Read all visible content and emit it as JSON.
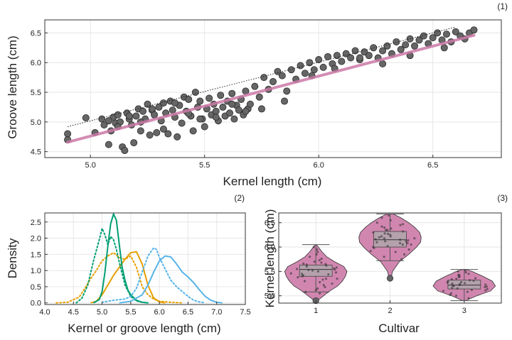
{
  "panels": [
    "(1)",
    "(2)",
    "(3)"
  ],
  "chart_data": [
    {
      "type": "scatter",
      "title": "",
      "panel_label": "(1)",
      "xlabel": "Kernel length (cm)",
      "ylabel": "Groove length (cm)",
      "xlim": [
        4.8,
        6.8
      ],
      "ylim": [
        4.4,
        6.72
      ],
      "xticks": [
        5.0,
        5.5,
        6.0,
        6.5
      ],
      "yticks": [
        4.5,
        5.0,
        5.5,
        6.0,
        6.5
      ],
      "xtick_labels": [
        "5.0",
        "5.5",
        "6.0",
        "6.5"
      ],
      "ytick_labels": [
        "4.5",
        "5.0",
        "5.5",
        "6.0",
        "6.5"
      ],
      "grid": true,
      "series": [
        {
          "kind": "points",
          "color": "#555555",
          "x": [
            4.9,
            4.9,
            4.98,
            5.02,
            5.05,
            5.06,
            5.08,
            5.09,
            5.1,
            5.11,
            5.12,
            5.13,
            5.14,
            5.15,
            5.16,
            5.17,
            5.18,
            5.19,
            5.2,
            5.21,
            5.22,
            5.23,
            5.24,
            5.25,
            5.26,
            5.27,
            5.28,
            5.29,
            5.3,
            5.31,
            5.32,
            5.33,
            5.34,
            5.35,
            5.36,
            5.37,
            5.38,
            5.39,
            5.4,
            5.41,
            5.42,
            5.43,
            5.44,
            5.45,
            5.46,
            5.47,
            5.48,
            5.49,
            5.5,
            5.51,
            5.52,
            5.53,
            5.54,
            5.55,
            5.56,
            5.57,
            5.58,
            5.59,
            5.6,
            5.61,
            5.62,
            5.63,
            5.64,
            5.65,
            5.66,
            5.67,
            5.68,
            5.69,
            5.7,
            5.72,
            5.74,
            5.76,
            5.78,
            5.8,
            5.82,
            5.84,
            5.86,
            5.88,
            5.9,
            5.92,
            5.94,
            5.96,
            5.98,
            6.0,
            6.02,
            6.04,
            6.06,
            6.08,
            6.1,
            6.12,
            6.14,
            6.16,
            6.18,
            6.2,
            6.22,
            6.24,
            6.26,
            6.28,
            6.3,
            6.32,
            6.34,
            6.36,
            6.38,
            6.4,
            6.42,
            6.44,
            6.46,
            6.48,
            6.5,
            6.52,
            6.54,
            6.56,
            6.58,
            6.6,
            6.62,
            6.64,
            6.66,
            6.68,
            5.08,
            5.12,
            5.17,
            5.22,
            5.27,
            5.32,
            5.37,
            5.43,
            5.48,
            5.55,
            5.62,
            5.68,
            5.75,
            5.85,
            5.97,
            6.07,
            6.18,
            6.28,
            6.4,
            6.55
          ],
          "y": [
            4.8,
            4.7,
            5.07,
            4.82,
            5.05,
            4.95,
            4.62,
            4.85,
            5.08,
            4.98,
            5.12,
            5.0,
            4.58,
            4.52,
            5.15,
            5.05,
            4.95,
            4.65,
            5.1,
            5.22,
            4.85,
            5.18,
            5.05,
            5.3,
            4.78,
            5.2,
            5.12,
            4.82,
            5.25,
            5.02,
            5.32,
            5.15,
            4.8,
            5.35,
            5.2,
            5.08,
            4.75,
            5.28,
            4.98,
            5.42,
            5.18,
            5.38,
            5.1,
            4.85,
            5.5,
            5.25,
            5.35,
            5.05,
            4.92,
            5.22,
            5.4,
            5.12,
            5.3,
            5.18,
            5.02,
            5.45,
            5.25,
            5.1,
            5.35,
            5.15,
            5.48,
            5.05,
            5.28,
            5.2,
            5.38,
            5.12,
            5.52,
            5.22,
            5.3,
            5.6,
            5.42,
            5.75,
            5.55,
            5.68,
            5.85,
            5.78,
            5.52,
            5.88,
            5.72,
            5.95,
            5.82,
            6.0,
            5.88,
            6.05,
            5.92,
            6.1,
            5.98,
            6.12,
            6.02,
            6.15,
            6.08,
            6.2,
            6.05,
            6.18,
            6.12,
            6.25,
            6.08,
            6.2,
            6.28,
            6.15,
            6.35,
            6.22,
            6.3,
            6.4,
            6.28,
            6.38,
            6.45,
            6.32,
            6.42,
            6.5,
            6.38,
            6.48,
            6.35,
            6.52,
            6.45,
            6.4,
            6.5,
            6.55,
            5.02,
            4.92,
            5.1,
            5.0,
            5.22,
            4.88,
            5.32,
            5.14,
            5.05,
            5.08,
            5.3,
            5.18,
            5.22,
            5.35,
            5.78,
            5.9,
            6.08,
            5.98,
            6.12,
            6.25
          ]
        },
        {
          "kind": "line",
          "style": "solid",
          "color": "#cc79a7",
          "x": [
            4.9,
            6.68
          ],
          "y": [
            4.66,
            6.46
          ]
        },
        {
          "kind": "line",
          "style": "dotted",
          "color": "#222222",
          "x": [
            4.9,
            6.6
          ],
          "y": [
            4.92,
            6.6
          ]
        }
      ]
    },
    {
      "type": "line",
      "title": "",
      "panel_label": "(2)",
      "xlabel": "Kernel or groove length (cm)",
      "ylabel": "Density",
      "xlim": [
        4.0,
        7.5
      ],
      "ylim": [
        -0.05,
        2.78
      ],
      "xticks": [
        4.0,
        4.5,
        5.0,
        5.5,
        6.0,
        6.5,
        7.0,
        7.5
      ],
      "yticks": [
        0.0,
        0.5,
        1.0,
        1.5,
        2.0,
        2.5
      ],
      "xtick_labels": [
        "4.0",
        "4.5",
        "5.0",
        "5.5",
        "6.0",
        "6.5",
        "7.0",
        "7.5"
      ],
      "ytick_labels": [
        "0.0",
        "0.5",
        "1.0",
        "1.5",
        "2.0",
        "2.5"
      ],
      "grid": true,
      "series": [
        {
          "color": "#e69f00",
          "style": "solid",
          "x": [
            4.8,
            4.9,
            5.0,
            5.1,
            5.2,
            5.3,
            5.4,
            5.5,
            5.6,
            5.7,
            5.8,
            5.9,
            6.0,
            6.1
          ],
          "y": [
            0.0,
            0.05,
            0.25,
            0.55,
            0.85,
            1.1,
            1.35,
            1.55,
            1.58,
            1.2,
            0.55,
            0.15,
            0.03,
            0.0
          ]
        },
        {
          "color": "#e69f00",
          "style": "dotted",
          "x": [
            4.2,
            4.4,
            4.6,
            4.7,
            4.8,
            4.9,
            5.0,
            5.1,
            5.2,
            5.3,
            5.4,
            5.5,
            5.6,
            5.7,
            5.8,
            5.9,
            6.0,
            6.2,
            6.4
          ],
          "y": [
            0.0,
            0.02,
            0.18,
            0.45,
            0.75,
            1.0,
            1.3,
            1.45,
            1.55,
            1.4,
            1.35,
            1.45,
            1.1,
            0.5,
            0.25,
            0.12,
            0.05,
            0.02,
            0.0
          ]
        },
        {
          "color": "#009e73",
          "style": "solid",
          "x": [
            4.85,
            4.95,
            5.0,
            5.05,
            5.1,
            5.15,
            5.2,
            5.25,
            5.3,
            5.35,
            5.4,
            5.45,
            5.5,
            5.6,
            5.7,
            5.8
          ],
          "y": [
            0.0,
            0.1,
            0.35,
            0.95,
            1.75,
            2.45,
            2.75,
            2.55,
            1.8,
            1.1,
            0.7,
            0.4,
            0.25,
            0.08,
            0.02,
            0.0
          ]
        },
        {
          "color": "#009e73",
          "style": "dotted",
          "x": [
            4.55,
            4.65,
            4.75,
            4.85,
            4.95,
            5.0,
            5.05,
            5.1,
            5.15,
            5.2,
            5.25,
            5.3,
            5.4,
            5.5,
            5.6,
            5.7,
            5.8
          ],
          "y": [
            0.0,
            0.15,
            0.55,
            1.3,
            1.95,
            2.3,
            2.1,
            1.8,
            2.05,
            1.95,
            1.65,
            1.25,
            0.55,
            0.2,
            0.06,
            0.02,
            0.0
          ]
        },
        {
          "color": "#56b4e9",
          "style": "solid",
          "x": [
            5.3,
            5.5,
            5.7,
            5.8,
            5.9,
            6.0,
            6.1,
            6.2,
            6.3,
            6.4,
            6.5,
            6.6,
            6.7,
            6.8,
            6.9,
            7.0,
            7.1
          ],
          "y": [
            0.0,
            0.05,
            0.25,
            0.55,
            0.95,
            1.3,
            1.45,
            1.42,
            1.2,
            0.95,
            0.8,
            0.62,
            0.4,
            0.2,
            0.08,
            0.02,
            0.0
          ]
        },
        {
          "color": "#56b4e9",
          "style": "dotted",
          "x": [
            5.0,
            5.2,
            5.4,
            5.5,
            5.6,
            5.7,
            5.8,
            5.9,
            5.95,
            6.0,
            6.1,
            6.2,
            6.3,
            6.4,
            6.5,
            6.6,
            6.7,
            6.8
          ],
          "y": [
            0.02,
            0.08,
            0.12,
            0.2,
            0.45,
            0.95,
            1.45,
            1.7,
            1.65,
            1.4,
            1.05,
            0.7,
            0.5,
            0.35,
            0.2,
            0.08,
            0.03,
            0.0
          ]
        }
      ]
    },
    {
      "type": "violin",
      "title": "",
      "panel_label": "(3)",
      "xlabel": "Cultivar",
      "ylabel": "Kernel length (cm)",
      "categories": [
        "1",
        "2",
        "3"
      ],
      "ylim": [
        4.85,
        6.7
      ],
      "yticks": [
        5.0,
        5.5,
        6.0,
        6.5
      ],
      "ytick_labels": [
        "5.0",
        "5.5",
        "6.0",
        "6.5"
      ],
      "grid": true,
      "violin_color": "#cc79a7",
      "box_color": "#aaaaaa",
      "groups": [
        {
          "category": "1",
          "min": 4.9,
          "q1": 5.4,
          "median": 5.54,
          "q3": 5.63,
          "max": 6.05,
          "whisker_low": 5.08,
          "whisker_high": 6.05,
          "outliers": [
            4.9
          ],
          "density_y": [
            4.9,
            5.0,
            5.1,
            5.2,
            5.3,
            5.4,
            5.5,
            5.6,
            5.7,
            5.8,
            5.9,
            6.0,
            6.05
          ],
          "density_w": [
            0.05,
            0.25,
            0.45,
            0.7,
            0.85,
            0.95,
            1.0,
            0.9,
            0.6,
            0.35,
            0.2,
            0.08,
            0.02
          ],
          "points": [
            5.08,
            5.12,
            5.18,
            5.22,
            5.25,
            5.28,
            5.3,
            5.33,
            5.35,
            5.38,
            5.4,
            5.42,
            5.44,
            5.46,
            5.48,
            5.5,
            5.52,
            5.53,
            5.54,
            5.56,
            5.58,
            5.6,
            5.62,
            5.64,
            5.66,
            5.68,
            5.7,
            5.73,
            5.76,
            5.8,
            5.85,
            5.9,
            5.95,
            6.0,
            5.05,
            5.15,
            5.35,
            5.45,
            5.55,
            5.65
          ]
        },
        {
          "category": "2",
          "min": 5.36,
          "q1": 6.0,
          "median": 6.15,
          "q3": 6.32,
          "max": 6.68,
          "whisker_low": 5.72,
          "whisker_high": 6.68,
          "outliers": [
            5.36
          ],
          "density_y": [
            5.36,
            5.5,
            5.7,
            5.85,
            6.0,
            6.1,
            6.2,
            6.3,
            6.4,
            6.5,
            6.6,
            6.68
          ],
          "density_w": [
            0.03,
            0.08,
            0.3,
            0.6,
            0.85,
            0.98,
            1.0,
            0.95,
            0.8,
            0.6,
            0.35,
            0.1
          ],
          "points": [
            5.75,
            5.8,
            5.85,
            5.9,
            5.95,
            5.98,
            6.0,
            6.02,
            6.05,
            6.08,
            6.1,
            6.12,
            6.14,
            6.15,
            6.16,
            6.18,
            6.2,
            6.22,
            6.25,
            6.28,
            6.3,
            6.32,
            6.35,
            6.38,
            6.4,
            6.45,
            6.5,
            6.55,
            6.6,
            6.65,
            6.05,
            6.12,
            6.22,
            6.27,
            6.18,
            6.08,
            5.92,
            6.35,
            6.42,
            6.47
          ]
        },
        {
          "category": "3",
          "min": 4.9,
          "q1": 5.14,
          "median": 5.22,
          "q3": 5.32,
          "max": 5.54,
          "whisker_low": 4.9,
          "whisker_high": 5.54,
          "outliers": [],
          "density_y": [
            4.9,
            5.0,
            5.1,
            5.2,
            5.3,
            5.4,
            5.5,
            5.54
          ],
          "density_w": [
            0.05,
            0.4,
            0.85,
            1.0,
            0.9,
            0.6,
            0.25,
            0.05
          ],
          "points": [
            4.95,
            5.0,
            5.05,
            5.08,
            5.1,
            5.12,
            5.14,
            5.16,
            5.18,
            5.2,
            5.21,
            5.22,
            5.23,
            5.24,
            5.26,
            5.28,
            5.3,
            5.32,
            5.34,
            5.36,
            5.38,
            5.4,
            5.42,
            5.45,
            5.48,
            5.5,
            5.52,
            5.15,
            5.25,
            5.35,
            5.19,
            5.27,
            5.11,
            5.31,
            5.43,
            5.02
          ]
        }
      ]
    }
  ]
}
